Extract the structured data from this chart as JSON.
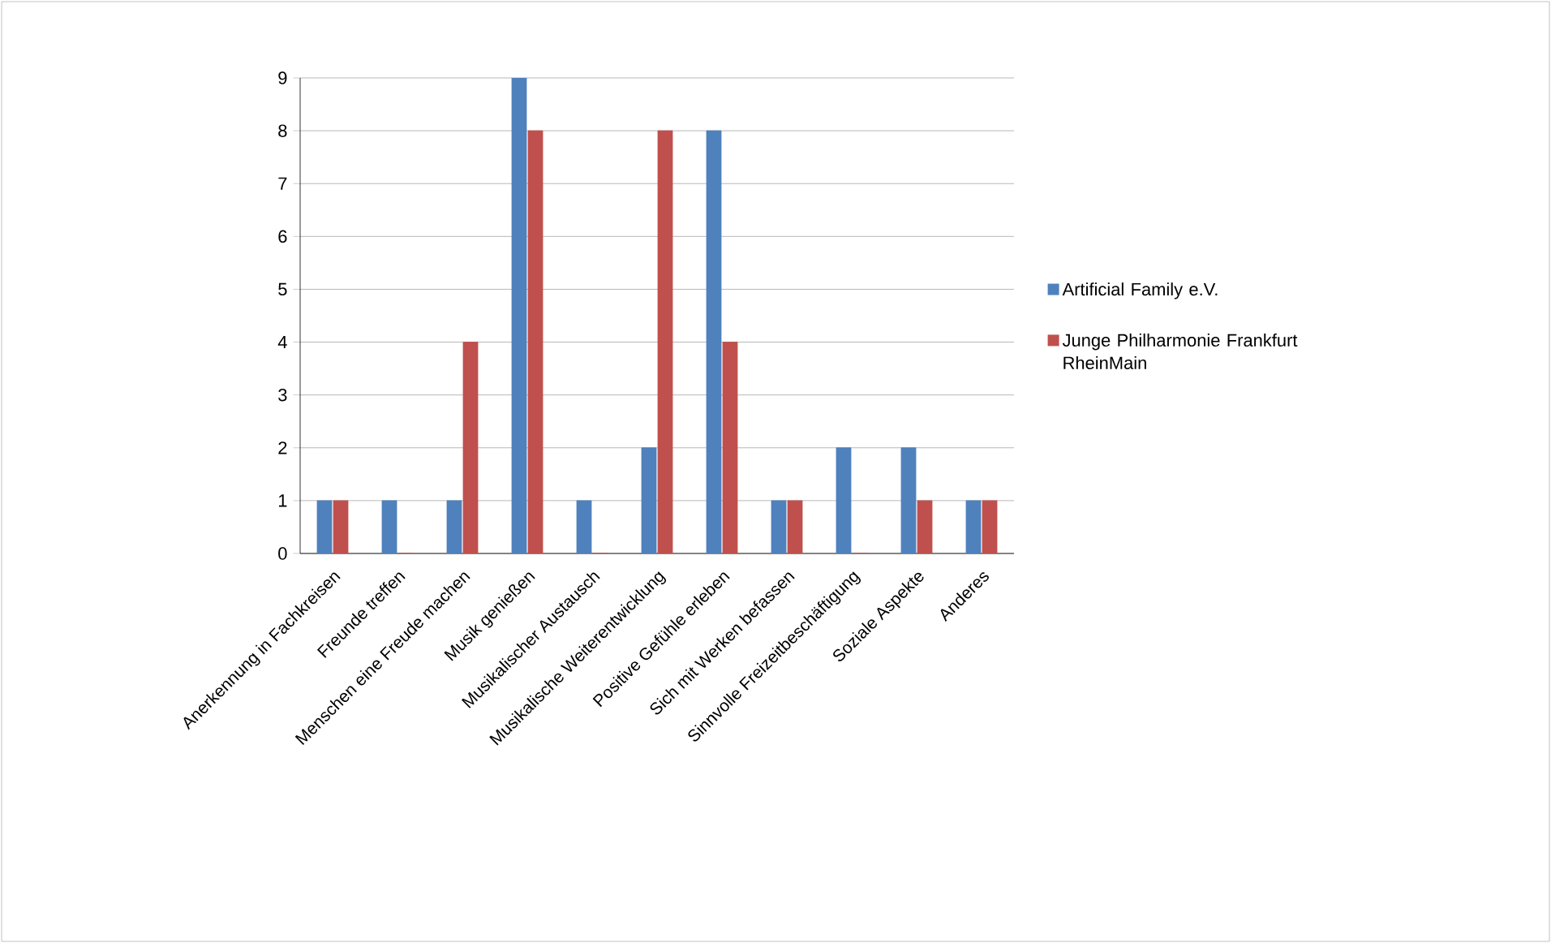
{
  "chart_data": {
    "type": "bar",
    "categories": [
      "Anerkennung in Fachkreisen",
      "Freunde treffen",
      "Menschen eine Freude machen",
      "Musik genießen",
      "Musikalischer Austausch",
      "Musikalische Weiterentwicklung",
      "Positive Gefühle erleben",
      "Sich mit Werken befassen",
      "Sinnvolle Freizeitbeschäftigung",
      "Soziale Aspekte",
      "Anderes"
    ],
    "series": [
      {
        "name": "Artificial Family e.V.",
        "color": "#4f81bd",
        "values": [
          1,
          1,
          1,
          9,
          1,
          2,
          8,
          1,
          2,
          2,
          1
        ]
      },
      {
        "name": "Junge Philharmonie Frankfurt RheinMain",
        "color": "#c0504d",
        "values": [
          1,
          0,
          4,
          8,
          0,
          8,
          4,
          1,
          0,
          1,
          1
        ]
      }
    ],
    "ylim": [
      0,
      9
    ],
    "yticks": [
      0,
      1,
      2,
      3,
      4,
      5,
      6,
      7,
      8,
      9
    ],
    "grid": "y",
    "legend": "right"
  }
}
